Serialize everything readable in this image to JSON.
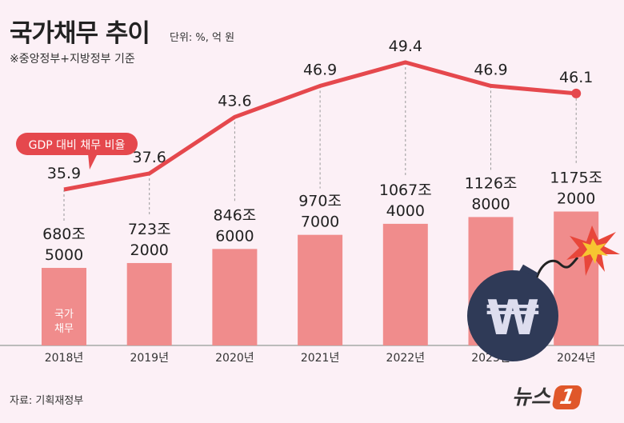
{
  "title": "국가채무 추이",
  "unit": "단위: %, 억 원",
  "note": "※중앙정부+지방정부 기준",
  "source": "자료: 기획재정부",
  "logo": "뉴스1",
  "chart_data": {
    "type": "bar+line",
    "categories": [
      "2018년",
      "2019년",
      "2020년",
      "2021년",
      "2022년",
      "2023년",
      "2024년"
    ],
    "series": [
      {
        "name": "국가채무",
        "type": "bar",
        "values": [
          6805000,
          7232000,
          8466000,
          9707000,
          10674000,
          11268000,
          11752000
        ],
        "labels": [
          [
            "680조",
            "5000"
          ],
          [
            "723조",
            "2000"
          ],
          [
            "846조",
            "6000"
          ],
          [
            "970조",
            "7000"
          ],
          [
            "1067조",
            "4000"
          ],
          [
            "1126조",
            "8000"
          ],
          [
            "1175조",
            "2000"
          ]
        ],
        "color": "#f08c8c"
      },
      {
        "name": "GDP 대비 채무 비율",
        "type": "line",
        "values": [
          35.9,
          37.6,
          43.6,
          46.9,
          49.4,
          46.9,
          46.1
        ],
        "color": "#e5484d"
      }
    ],
    "bar_inner_label": [
      "국가",
      "채무"
    ],
    "line_callout": "GDP 대비 채무 비율"
  }
}
